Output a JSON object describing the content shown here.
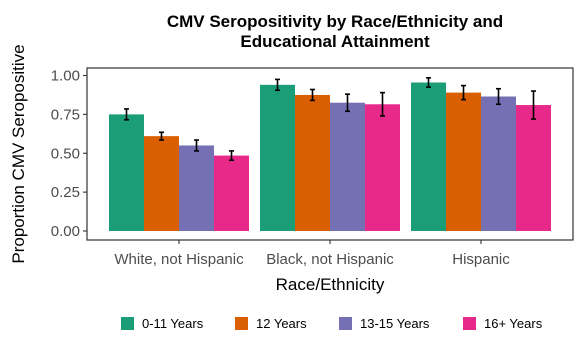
{
  "chart_data": {
    "type": "bar",
    "title_line1": "CMV Seropositivity by Race/Ethnicity and",
    "title_line2": "Educational Attainment",
    "xlabel": "Race/Ethnicity",
    "ylabel": "Proportion CMV Seropositive",
    "ylim": [
      0,
      1.05
    ],
    "yticks": [
      "0.00",
      "0.25",
      "0.50",
      "0.75",
      "1.00"
    ],
    "categories": [
      "White, not Hispanic",
      "Black, not Hispanic",
      "Hispanic"
    ],
    "legend_position": "bottom",
    "series": [
      {
        "name": "0-11 Years",
        "color": "#1b9e77",
        "values": [
          0.75,
          0.94,
          0.955
        ],
        "errors": [
          0.035,
          0.035,
          0.03
        ]
      },
      {
        "name": "12 Years",
        "color": "#d95f02",
        "values": [
          0.61,
          0.875,
          0.89
        ],
        "errors": [
          0.025,
          0.035,
          0.045
        ]
      },
      {
        "name": "13-15 Years",
        "color": "#7570b3",
        "values": [
          0.55,
          0.825,
          0.865
        ],
        "errors": [
          0.035,
          0.055,
          0.05
        ]
      },
      {
        "name": "16+ Years",
        "color": "#e7298a",
        "values": [
          0.485,
          0.815,
          0.81
        ],
        "errors": [
          0.03,
          0.075,
          0.09
        ]
      }
    ]
  }
}
